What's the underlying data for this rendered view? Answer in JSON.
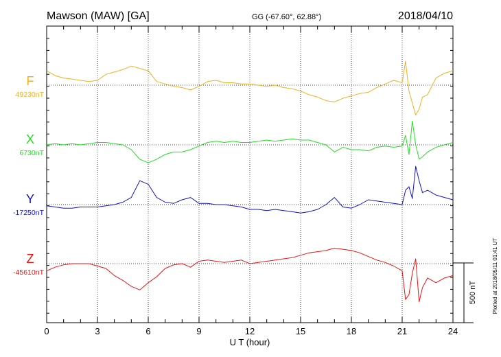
{
  "header": {
    "station": "Mawson (MAW)  [GA]",
    "coords": "GG (-67.60°,  62.88°)",
    "date": "2018/04/10"
  },
  "side_note": "Plotted at 2018/05/11 01:41 UT",
  "scale_label": "500 nT",
  "chart_data": {
    "type": "line",
    "title": "Mawson (MAW)  [GA]",
    "xlabel": "U T (hour)",
    "ylabel": "",
    "xlim": [
      0,
      24
    ],
    "x_ticks": [
      "0",
      "3",
      "6",
      "9",
      "12",
      "15",
      "18",
      "21",
      "24"
    ],
    "grid": true,
    "scale_bar_nT": 500,
    "series": [
      {
        "name": "F",
        "baseline_label": "49230nT",
        "color": "#f0b020",
        "x": [
          0,
          0.5,
          1,
          1.5,
          2,
          2.5,
          3,
          3.5,
          4,
          4.5,
          5,
          5.5,
          6,
          6.5,
          7,
          7.5,
          8,
          8.5,
          9,
          9.5,
          10,
          10.5,
          11,
          11.5,
          12,
          12.5,
          13,
          13.5,
          14,
          14.5,
          15,
          15.5,
          16,
          16.5,
          17,
          17.5,
          18,
          18.5,
          19,
          19.5,
          20,
          20.5,
          21,
          21.2,
          21.4,
          21.6,
          21.8,
          22,
          22.2,
          22.5,
          23,
          23.5,
          24
        ],
        "values": [
          120,
          80,
          60,
          50,
          40,
          30,
          40,
          90,
          110,
          130,
          160,
          140,
          120,
          30,
          10,
          -10,
          -20,
          -40,
          -10,
          30,
          40,
          20,
          20,
          10,
          10,
          0,
          -10,
          0,
          -20,
          -30,
          -50,
          -80,
          -100,
          -130,
          -140,
          -110,
          -90,
          -70,
          -60,
          -20,
          10,
          40,
          20,
          200,
          -50,
          -150,
          -250,
          -200,
          -100,
          -80,
          60,
          100,
          120
        ]
      },
      {
        "name": "X",
        "baseline_label": "6730nT",
        "color": "#22dd22",
        "x": [
          0,
          0.5,
          1,
          1.5,
          2,
          2.5,
          3,
          3.5,
          4,
          4.5,
          5,
          5.5,
          6,
          6.5,
          7,
          7.5,
          8,
          8.5,
          9,
          9.5,
          10,
          10.5,
          11,
          11.5,
          12,
          12.5,
          13,
          13.5,
          14,
          14.5,
          15,
          15.5,
          16,
          16.5,
          17,
          17.5,
          18,
          18.5,
          19,
          19.5,
          20,
          20.5,
          21,
          21.2,
          21.4,
          21.6,
          21.8,
          22,
          22.2,
          22.5,
          23,
          23.5,
          24
        ],
        "values": [
          0,
          10,
          0,
          10,
          0,
          10,
          20,
          20,
          10,
          0,
          -40,
          -120,
          -150,
          -120,
          -80,
          -60,
          -60,
          -40,
          -10,
          20,
          30,
          20,
          30,
          20,
          20,
          30,
          40,
          30,
          40,
          50,
          40,
          40,
          20,
          0,
          -60,
          -20,
          -40,
          -40,
          -50,
          -20,
          -10,
          -20,
          -10,
          80,
          -80,
          200,
          0,
          -120,
          -100,
          -60,
          -20,
          0,
          20
        ]
      },
      {
        "name": "Y",
        "baseline_label": "-17250nT",
        "color": "#1010cc",
        "x": [
          0,
          0.5,
          1,
          1.5,
          2,
          2.5,
          3,
          3.5,
          4,
          4.5,
          5,
          5.5,
          6,
          6.5,
          7,
          7.5,
          8,
          8.5,
          9,
          9.5,
          10,
          10.5,
          11,
          11.5,
          12,
          12.5,
          13,
          13.5,
          14,
          14.5,
          15,
          15.5,
          16,
          16.5,
          17,
          17.5,
          18,
          18.5,
          19,
          19.5,
          20,
          20.5,
          21,
          21.2,
          21.4,
          21.6,
          21.8,
          22,
          22.2,
          22.5,
          23,
          23.5,
          24
        ],
        "values": [
          -10,
          -20,
          -30,
          -30,
          -20,
          -20,
          -20,
          -10,
          0,
          20,
          60,
          200,
          170,
          60,
          20,
          10,
          40,
          60,
          10,
          10,
          0,
          0,
          -10,
          -20,
          -40,
          -40,
          -50,
          -40,
          -50,
          -60,
          -70,
          -60,
          -40,
          0,
          60,
          -20,
          -30,
          0,
          40,
          30,
          20,
          10,
          0,
          120,
          150,
          50,
          320,
          200,
          100,
          120,
          80,
          60,
          40
        ]
      },
      {
        "name": "Z",
        "baseline_label": "-45610nT",
        "color": "#ee1111",
        "x": [
          0,
          0.5,
          1,
          1.5,
          2,
          2.5,
          3,
          3.5,
          4,
          4.5,
          5,
          5.5,
          6,
          6.5,
          7,
          7.5,
          8,
          8.5,
          9,
          9.5,
          10,
          10.5,
          11,
          11.5,
          12,
          12.5,
          13,
          13.5,
          14,
          14.5,
          15,
          15.5,
          16,
          16.5,
          17,
          17.5,
          18,
          18.5,
          19,
          19.5,
          20,
          20.5,
          21,
          21.2,
          21.4,
          21.6,
          21.8,
          22,
          22.2,
          22.5,
          23,
          23.5,
          24
        ],
        "values": [
          -60,
          -30,
          -10,
          0,
          0,
          0,
          -20,
          -40,
          -100,
          -140,
          -190,
          -220,
          -160,
          -110,
          -40,
          -10,
          0,
          -30,
          20,
          30,
          20,
          10,
          20,
          30,
          0,
          10,
          20,
          30,
          40,
          50,
          70,
          90,
          100,
          110,
          130,
          120,
          110,
          90,
          60,
          30,
          10,
          -20,
          -60,
          -300,
          -260,
          -80,
          40,
          -320,
          -200,
          -120,
          -160,
          -120,
          -100
        ]
      }
    ]
  }
}
